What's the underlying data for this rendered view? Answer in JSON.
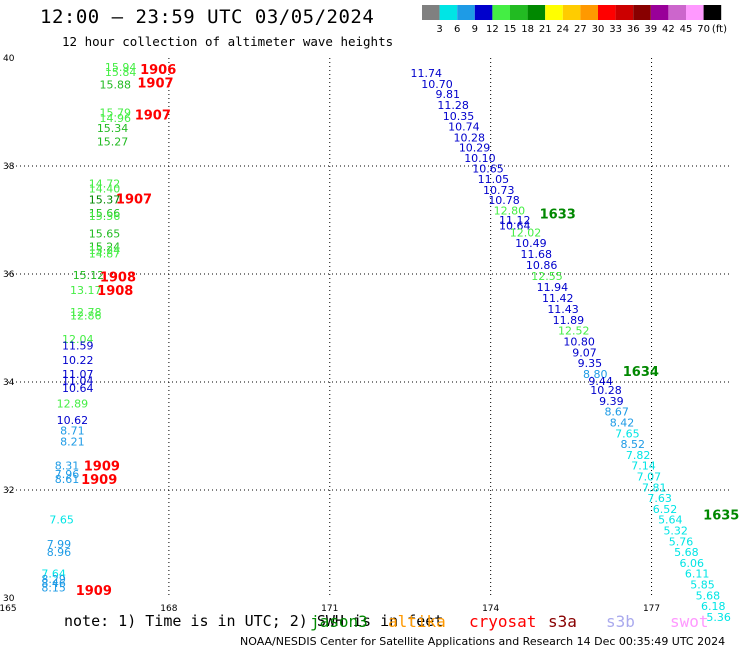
{
  "title": "12:00 — 23:59 UTC 03/05/2024",
  "subtitle": "12 hour collection of altimeter wave heights",
  "colorbar": {
    "unit": "(ft)",
    "colors": [
      "#808080",
      "#00e5e5",
      "#1e9be6",
      "#0000cc",
      "#44ee44",
      "#22bb22",
      "#008800",
      "#ffff00",
      "#ffcc00",
      "#ff9900",
      "#ff0000",
      "#cc0000",
      "#880000",
      "#990099",
      "#cc66cc",
      "#ff99ff",
      "#000000"
    ],
    "labels": [
      "3",
      "6",
      "9",
      "12",
      "15",
      "18",
      "21",
      "24",
      "27",
      "30",
      "33",
      "36",
      "39",
      "42",
      "45",
      "70"
    ]
  },
  "note": "note: 1) Time is in UTC; 2) SWH is in feet",
  "credit": "NOAA/NESDIS Center for Satellite Applications and Research    14 Dec 00:35:49 UTC 2024",
  "satellites": [
    {
      "name": "jason3",
      "color": "#008800"
    },
    {
      "name": "altika",
      "color": "#ff9900"
    },
    {
      "name": "cryosat",
      "color": "#ff0000"
    },
    {
      "name": "s3a",
      "color": "#880000"
    },
    {
      "name": "s3b",
      "color": "#aaaaee"
    },
    {
      "name": "swot",
      "color": "#ff99ff"
    }
  ],
  "chart_data": {
    "type": "scatter",
    "title": "12:00 — 23:59 UTC 03/05/2024",
    "subtitle": "12 hour collection of altimeter wave heights",
    "xlim": [
      165,
      178.5
    ],
    "ylim": [
      30,
      40
    ],
    "x_ticks": [
      165,
      168,
      171,
      174,
      177
    ],
    "y_ticks": [
      30,
      32,
      34,
      36,
      38,
      40
    ],
    "grid": true,
    "points": [
      {
        "x": 167.1,
        "y": 39.83,
        "v": "15.94",
        "c": "#44ee44"
      },
      {
        "x": 167.1,
        "y": 39.74,
        "v": "15.84",
        "c": "#44ee44"
      },
      {
        "x": 167.0,
        "y": 39.51,
        "v": "15.88",
        "c": "#22bb22"
      },
      {
        "x": 167.0,
        "y": 38.99,
        "v": "15.79",
        "c": "#44ee44"
      },
      {
        "x": 167.0,
        "y": 38.89,
        "v": "14.96",
        "c": "#44ee44"
      },
      {
        "x": 166.95,
        "y": 38.7,
        "v": "15.34",
        "c": "#22bb22"
      },
      {
        "x": 166.95,
        "y": 38.45,
        "v": "15.27",
        "c": "#22bb22"
      },
      {
        "x": 166.8,
        "y": 37.68,
        "v": "14.72",
        "c": "#44ee44"
      },
      {
        "x": 166.8,
        "y": 37.58,
        "v": "14.40",
        "c": "#44ee44"
      },
      {
        "x": 166.8,
        "y": 37.38,
        "v": "15.37",
        "c": "#008800"
      },
      {
        "x": 166.8,
        "y": 37.13,
        "v": "15.66",
        "c": "#22bb22"
      },
      {
        "x": 166.8,
        "y": 37.07,
        "v": "15.56",
        "c": "#44ee44"
      },
      {
        "x": 166.8,
        "y": 36.75,
        "v": "15.65",
        "c": "#22bb22"
      },
      {
        "x": 166.8,
        "y": 36.51,
        "v": "15.24",
        "c": "#22bb22"
      },
      {
        "x": 166.8,
        "y": 36.44,
        "v": "15.24",
        "c": "#44ee44"
      },
      {
        "x": 166.8,
        "y": 36.38,
        "v": "14.87",
        "c": "#44ee44"
      },
      {
        "x": 166.5,
        "y": 35.98,
        "v": "15.12",
        "c": "#22bb22"
      },
      {
        "x": 166.45,
        "y": 35.7,
        "v": "13.17",
        "c": "#44ee44"
      },
      {
        "x": 166.45,
        "y": 35.3,
        "v": "12.78",
        "c": "#44ee44"
      },
      {
        "x": 166.45,
        "y": 35.23,
        "v": "12.86",
        "c": "#44ee44"
      },
      {
        "x": 166.3,
        "y": 34.8,
        "v": "12.04",
        "c": "#44ee44"
      },
      {
        "x": 166.3,
        "y": 34.68,
        "v": "11.59",
        "c": "#0000cc"
      },
      {
        "x": 166.3,
        "y": 34.41,
        "v": "10.22",
        "c": "#0000cc"
      },
      {
        "x": 166.3,
        "y": 34.15,
        "v": "11.07",
        "c": "#0000cc"
      },
      {
        "x": 166.3,
        "y": 34.03,
        "v": "11.04",
        "c": "#0000cc"
      },
      {
        "x": 166.3,
        "y": 33.89,
        "v": "10.64",
        "c": "#0000cc"
      },
      {
        "x": 166.2,
        "y": 33.6,
        "v": "12.89",
        "c": "#44ee44"
      },
      {
        "x": 166.2,
        "y": 33.3,
        "v": "10.62",
        "c": "#0000cc"
      },
      {
        "x": 166.2,
        "y": 33.1,
        "v": "8.71",
        "c": "#1e9be6"
      },
      {
        "x": 166.2,
        "y": 32.9,
        "v": "8.21",
        "c": "#1e9be6"
      },
      {
        "x": 166.1,
        "y": 32.45,
        "v": "8.31",
        "c": "#1e9be6"
      },
      {
        "x": 166.1,
        "y": 32.3,
        "v": "7.96",
        "c": "#1e9be6"
      },
      {
        "x": 166.1,
        "y": 32.2,
        "v": "8.61",
        "c": "#1e9be6"
      },
      {
        "x": 166.0,
        "y": 31.45,
        "v": "7.65",
        "c": "#00e5e5"
      },
      {
        "x": 165.95,
        "y": 31.0,
        "v": "7.99",
        "c": "#1e9be6"
      },
      {
        "x": 165.95,
        "y": 30.85,
        "v": "8.96",
        "c": "#1e9be6"
      },
      {
        "x": 165.85,
        "y": 30.45,
        "v": "7.64",
        "c": "#00e5e5"
      },
      {
        "x": 165.85,
        "y": 30.35,
        "v": "8.29",
        "c": "#1e9be6"
      },
      {
        "x": 165.85,
        "y": 30.28,
        "v": "8.46",
        "c": "#1e9be6"
      },
      {
        "x": 165.85,
        "y": 30.19,
        "v": "8.15",
        "c": "#1e9be6"
      },
      {
        "x": 172.8,
        "y": 39.72,
        "v": "11.74",
        "c": "#0000cc"
      },
      {
        "x": 173.0,
        "y": 39.52,
        "v": "10.70",
        "c": "#0000cc"
      },
      {
        "x": 173.2,
        "y": 39.33,
        "v": "9.81",
        "c": "#0000cc"
      },
      {
        "x": 173.3,
        "y": 39.13,
        "v": "11.28",
        "c": "#0000cc"
      },
      {
        "x": 173.4,
        "y": 38.93,
        "v": "10.35",
        "c": "#0000cc"
      },
      {
        "x": 173.5,
        "y": 38.73,
        "v": "10.74",
        "c": "#0000cc"
      },
      {
        "x": 173.6,
        "y": 38.53,
        "v": "10.28",
        "c": "#0000cc"
      },
      {
        "x": 173.7,
        "y": 38.34,
        "v": "10.29",
        "c": "#0000cc"
      },
      {
        "x": 173.8,
        "y": 38.15,
        "v": "10.10",
        "c": "#0000cc"
      },
      {
        "x": 173.95,
        "y": 37.95,
        "v": "10.65",
        "c": "#0000cc"
      },
      {
        "x": 174.05,
        "y": 37.76,
        "v": "11.05",
        "c": "#0000cc"
      },
      {
        "x": 174.15,
        "y": 37.56,
        "v": "10.73",
        "c": "#0000cc"
      },
      {
        "x": 174.25,
        "y": 37.37,
        "v": "10.78",
        "c": "#0000cc"
      },
      {
        "x": 174.35,
        "y": 37.18,
        "v": "12.80",
        "c": "#44ee44"
      },
      {
        "x": 174.45,
        "y": 37.0,
        "v": "11.12",
        "c": "#0000cc"
      },
      {
        "x": 174.45,
        "y": 36.9,
        "v": "10.64",
        "c": "#0000cc"
      },
      {
        "x": 174.65,
        "y": 36.77,
        "v": "12.02",
        "c": "#44ee44"
      },
      {
        "x": 174.75,
        "y": 36.57,
        "v": "10.49",
        "c": "#0000cc"
      },
      {
        "x": 174.85,
        "y": 36.37,
        "v": "11.68",
        "c": "#0000cc"
      },
      {
        "x": 174.95,
        "y": 36.17,
        "v": "10.86",
        "c": "#0000cc"
      },
      {
        "x": 175.05,
        "y": 35.96,
        "v": "12.55",
        "c": "#44ee44"
      },
      {
        "x": 175.15,
        "y": 35.76,
        "v": "11.94",
        "c": "#0000cc"
      },
      {
        "x": 175.25,
        "y": 35.56,
        "v": "11.42",
        "c": "#0000cc"
      },
      {
        "x": 175.35,
        "y": 35.35,
        "v": "11.43",
        "c": "#0000cc"
      },
      {
        "x": 175.45,
        "y": 35.15,
        "v": "11.89",
        "c": "#0000cc"
      },
      {
        "x": 175.55,
        "y": 34.95,
        "v": "12.52",
        "c": "#44ee44"
      },
      {
        "x": 175.65,
        "y": 34.75,
        "v": "10.80",
        "c": "#0000cc"
      },
      {
        "x": 175.75,
        "y": 34.55,
        "v": "9.07",
        "c": "#0000cc"
      },
      {
        "x": 175.85,
        "y": 34.35,
        "v": "9.35",
        "c": "#0000cc"
      },
      {
        "x": 175.95,
        "y": 34.15,
        "v": "8.80",
        "c": "#1e9be6"
      },
      {
        "x": 176.05,
        "y": 34.02,
        "v": "9.44",
        "c": "#0000cc"
      },
      {
        "x": 176.15,
        "y": 33.85,
        "v": "10.28",
        "c": "#0000cc"
      },
      {
        "x": 176.25,
        "y": 33.65,
        "v": "9.39",
        "c": "#0000cc"
      },
      {
        "x": 176.35,
        "y": 33.45,
        "v": "8.67",
        "c": "#1e9be6"
      },
      {
        "x": 176.45,
        "y": 33.25,
        "v": "8.42",
        "c": "#1e9be6"
      },
      {
        "x": 176.55,
        "y": 33.05,
        "v": "7.65",
        "c": "#00e5e5"
      },
      {
        "x": 176.65,
        "y": 32.85,
        "v": "8.52",
        "c": "#1e9be6"
      },
      {
        "x": 176.75,
        "y": 32.65,
        "v": "7.82",
        "c": "#00e5e5"
      },
      {
        "x": 176.85,
        "y": 32.45,
        "v": "7.14",
        "c": "#00e5e5"
      },
      {
        "x": 176.95,
        "y": 32.25,
        "v": "7.07",
        "c": "#00e5e5"
      },
      {
        "x": 177.05,
        "y": 32.05,
        "v": "7.81",
        "c": "#00e5e5"
      },
      {
        "x": 177.15,
        "y": 31.85,
        "v": "7.63",
        "c": "#00e5e5"
      },
      {
        "x": 177.25,
        "y": 31.65,
        "v": "6.52",
        "c": "#00e5e5"
      },
      {
        "x": 177.35,
        "y": 31.45,
        "v": "5.64",
        "c": "#00e5e5"
      },
      {
        "x": 177.45,
        "y": 31.25,
        "v": "5.32",
        "c": "#00e5e5"
      },
      {
        "x": 177.55,
        "y": 31.05,
        "v": "5.76",
        "c": "#00e5e5"
      },
      {
        "x": 177.65,
        "y": 30.85,
        "v": "5.68",
        "c": "#00e5e5"
      },
      {
        "x": 177.75,
        "y": 30.65,
        "v": "6.06",
        "c": "#00e5e5"
      },
      {
        "x": 177.85,
        "y": 30.45,
        "v": "6.11",
        "c": "#00e5e5"
      },
      {
        "x": 177.95,
        "y": 30.25,
        "v": "5.85",
        "c": "#00e5e5"
      },
      {
        "x": 178.05,
        "y": 30.05,
        "v": "5.68",
        "c": "#00e5e5"
      },
      {
        "x": 178.15,
        "y": 29.85,
        "v": "6.18",
        "c": "#00e5e5"
      },
      {
        "x": 178.25,
        "y": 29.65,
        "v": "5.36",
        "c": "#00e5e5"
      }
    ],
    "time_labels": [
      {
        "x": 167.8,
        "y": 39.8,
        "t": "1906",
        "c": "#ff0000"
      },
      {
        "x": 167.75,
        "y": 39.55,
        "t": "1907",
        "c": "#ff0000"
      },
      {
        "x": 167.7,
        "y": 38.95,
        "t": "1907",
        "c": "#ff0000"
      },
      {
        "x": 167.35,
        "y": 37.4,
        "t": "1907",
        "c": "#ff0000"
      },
      {
        "x": 167.05,
        "y": 35.95,
        "t": "1908",
        "c": "#ff0000"
      },
      {
        "x": 167.0,
        "y": 35.7,
        "t": "1908",
        "c": "#ff0000"
      },
      {
        "x": 166.75,
        "y": 32.45,
        "t": "1909",
        "c": "#ff0000"
      },
      {
        "x": 166.7,
        "y": 32.2,
        "t": "1909",
        "c": "#ff0000"
      },
      {
        "x": 166.6,
        "y": 30.15,
        "t": "1909",
        "c": "#ff0000"
      },
      {
        "x": 175.25,
        "y": 37.12,
        "t": "1633",
        "c": "#008800"
      },
      {
        "x": 176.8,
        "y": 34.2,
        "t": "1634",
        "c": "#008800"
      },
      {
        "x": 178.3,
        "y": 31.55,
        "t": "1635",
        "c": "#008800"
      }
    ]
  }
}
